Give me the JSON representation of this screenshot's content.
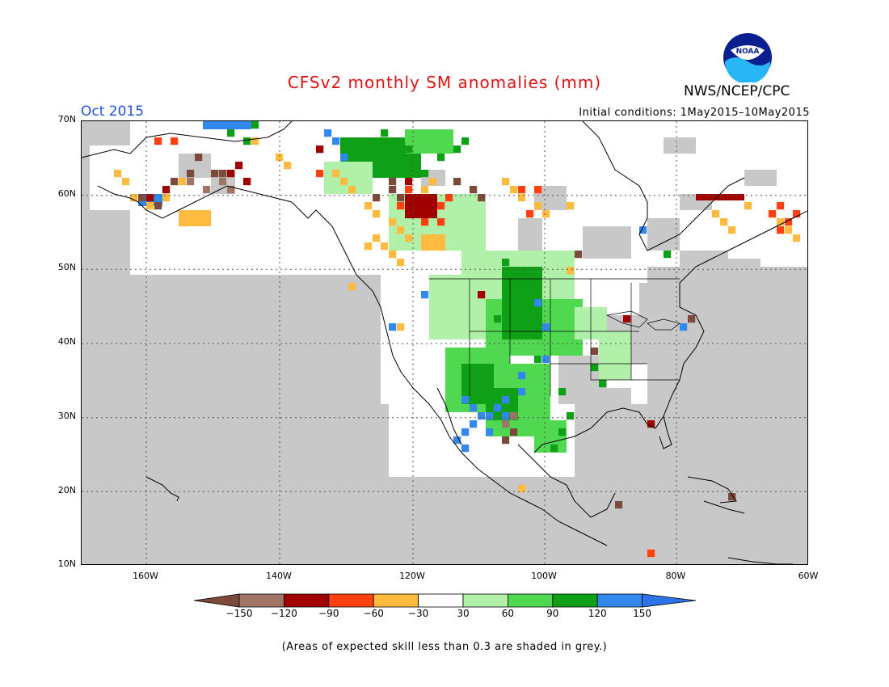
{
  "title": "CFSv2 monthly SM anomalies (mm)",
  "month_label": "Oct 2015",
  "initial_conditions": "Initial conditions: 1May2015–10May2015",
  "agency": "NWS/NCEP/CPC",
  "logo_text": "NOAA",
  "lat_ticks": [
    "70N",
    "60N",
    "50N",
    "40N",
    "30N",
    "20N",
    "10N"
  ],
  "lon_ticks": [
    "160W",
    "140W",
    "120W",
    "100W",
    "80W",
    "60W"
  ],
  "colorbar": {
    "labels": [
      "−150",
      "−120",
      "−90",
      "−60",
      "−30",
      "30",
      "60",
      "90",
      "120",
      "150"
    ],
    "colors": [
      "#7b4a3a",
      "#a07565",
      "#a00000",
      "#ff4010",
      "#ffbb40",
      "#ffffff",
      "#b0f0a8",
      "#50d850",
      "#10a018",
      "#3388ee",
      "#2c74e8"
    ]
  },
  "footnote": "(Areas of expected skill less than 0.3 are shaded in grey.)",
  "colors": {
    "title": "#e01010",
    "month": "#2255dd",
    "no_skill": "#c8c8c8",
    "low_anomaly": "#ffffff"
  }
}
